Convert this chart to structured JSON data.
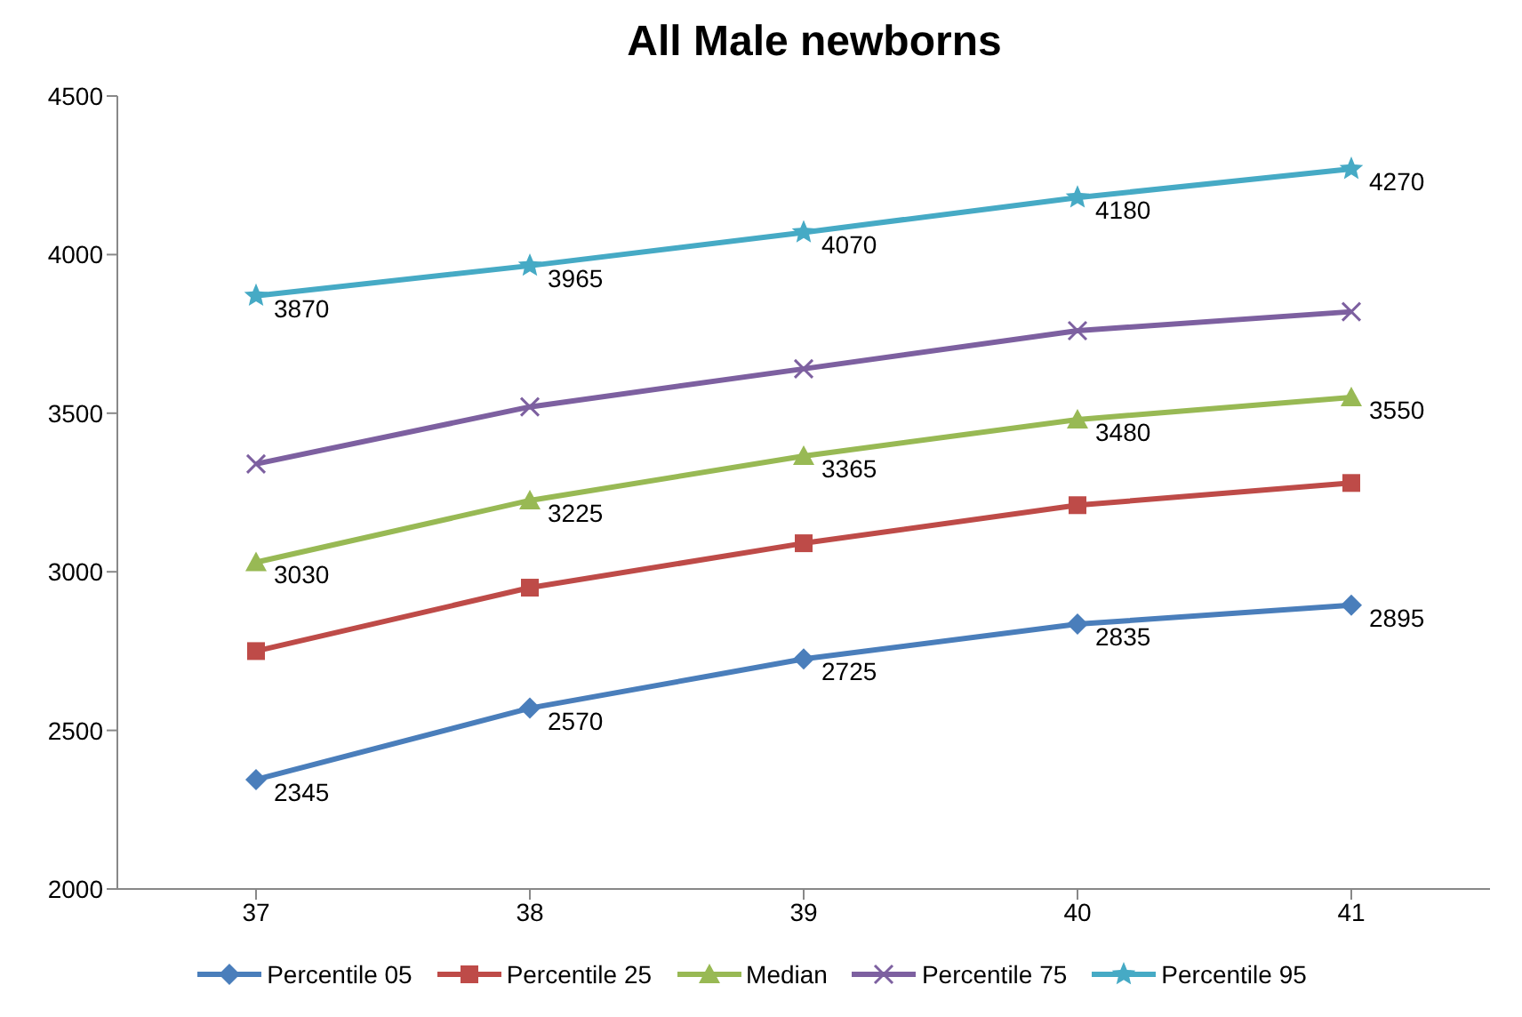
{
  "chart_data": {
    "type": "line",
    "title": "All Male newborns",
    "categories": [
      "37",
      "38",
      "39",
      "40",
      "41"
    ],
    "ylim": [
      2000,
      4500
    ],
    "yticks": [
      2000,
      2500,
      3000,
      3500,
      4000,
      4500
    ],
    "grid": false,
    "legend": "bottom",
    "line_style": "solid",
    "series": [
      {
        "name": "Percentile 05",
        "color": "#4a7ebb",
        "marker": "diamond",
        "values": [
          2345,
          2570,
          2725,
          2835,
          2895
        ],
        "value_labels": [
          "2345",
          "2570",
          "2725",
          "2835",
          "2895"
        ]
      },
      {
        "name": "Percentile 25",
        "color": "#be4b48",
        "marker": "square",
        "values": [
          2750,
          2950,
          3090,
          3210,
          3280
        ]
      },
      {
        "name": "Median",
        "color": "#98b954",
        "marker": "triangle",
        "values": [
          3030,
          3225,
          3365,
          3480,
          3550
        ],
        "value_labels": [
          "3030",
          "3225",
          "3365",
          "3480",
          "3550"
        ]
      },
      {
        "name": "Percentile 75",
        "color": "#7d60a0",
        "marker": "cross",
        "values": [
          3340,
          3520,
          3640,
          3760,
          3820
        ]
      },
      {
        "name": "Percentile 95",
        "color": "#46aac5",
        "marker": "star",
        "values": [
          3870,
          3965,
          4070,
          4180,
          4270
        ],
        "value_labels": [
          "3870",
          "3965",
          "4070",
          "4180",
          "4270"
        ]
      }
    ]
  }
}
